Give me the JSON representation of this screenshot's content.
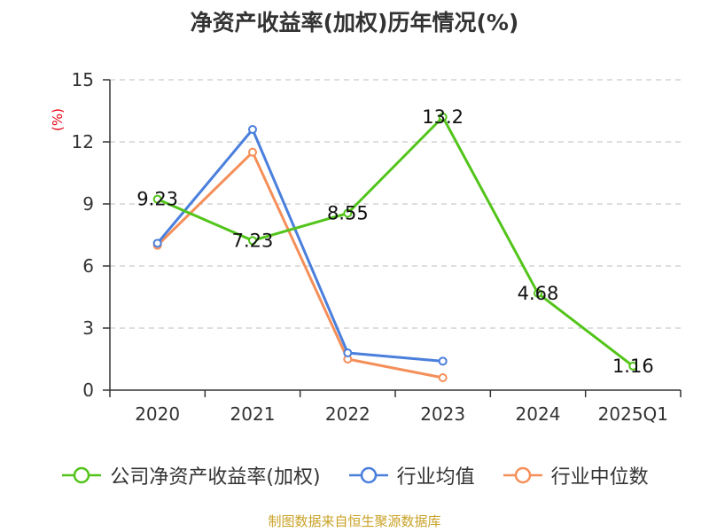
{
  "chart_data": {
    "type": "line",
    "title": "净资产收益率(加权)历年情况(%)",
    "ylabel": "(%)",
    "categories": [
      "2020",
      "2021",
      "2022",
      "2023",
      "2024",
      "2025Q1"
    ],
    "ylim": [
      0,
      15
    ],
    "yticks": [
      0,
      3,
      6,
      9,
      12,
      15
    ],
    "grid": true,
    "legend_position": "bottom",
    "series": [
      {
        "name": "公司净资产收益率(加权)",
        "color": "#52c41a",
        "values": [
          9.23,
          7.23,
          8.55,
          13.2,
          4.68,
          1.16
        ],
        "labels": [
          "9.23",
          "7.23",
          "8.55",
          "13.2",
          "4.68",
          "1.16"
        ]
      },
      {
        "name": "行业均值",
        "color": "#4a7fdc",
        "values": [
          7.1,
          12.6,
          1.8,
          1.4,
          null,
          null
        ]
      },
      {
        "name": "行业中位数",
        "color": "#f58f5a",
        "values": [
          7.0,
          11.5,
          1.5,
          0.6,
          null,
          null
        ]
      }
    ]
  },
  "source_text": "制图数据来自恒生聚源数据库"
}
